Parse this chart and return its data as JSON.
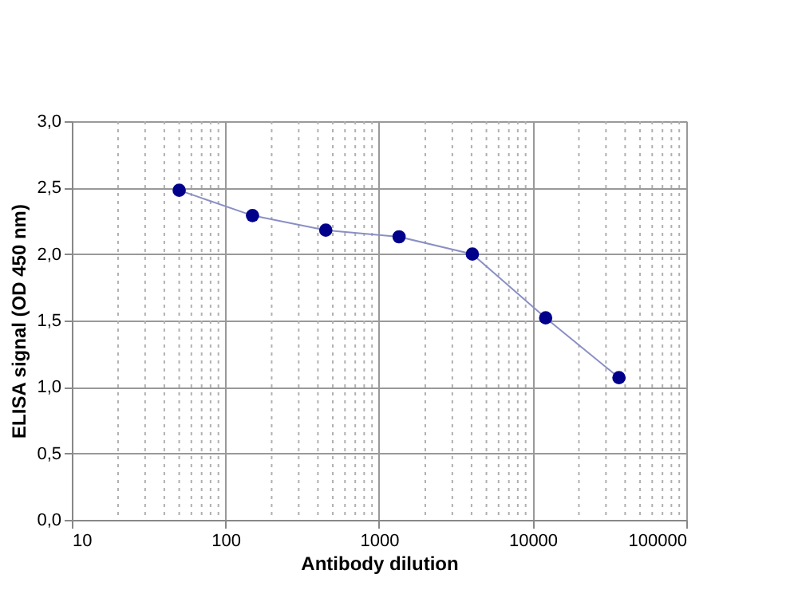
{
  "chart_data": {
    "type": "line",
    "xlabel": "Antibody dilution",
    "ylabel": "ELISA signal (OD 450 nm)",
    "x": [
      50,
      150,
      450,
      1350,
      4050,
      12150,
      36450
    ],
    "series": [
      {
        "color": "#00008b",
        "values": [
          2.48,
          2.29,
          2.18,
          2.13,
          2.0,
          1.52,
          1.07
        ]
      }
    ],
    "log": "x",
    "xlim": [
      10,
      100000
    ],
    "xticks": [
      10,
      100,
      1000,
      10000,
      100000
    ],
    "ylim": [
      0,
      3
    ],
    "yticks": [
      {
        "value": 0,
        "label": "0,0"
      },
      {
        "value": 0.5,
        "label": "0,5"
      },
      {
        "value": 1,
        "label": "1,0"
      },
      {
        "value": 1.5,
        "label": "1,5"
      },
      {
        "value": 2,
        "label": "2,0"
      },
      {
        "value": 2.5,
        "label": "2,5"
      },
      {
        "value": 3,
        "label": "3,0"
      }
    ],
    "grid": true,
    "marker": "circle",
    "line_style": "solid"
  }
}
